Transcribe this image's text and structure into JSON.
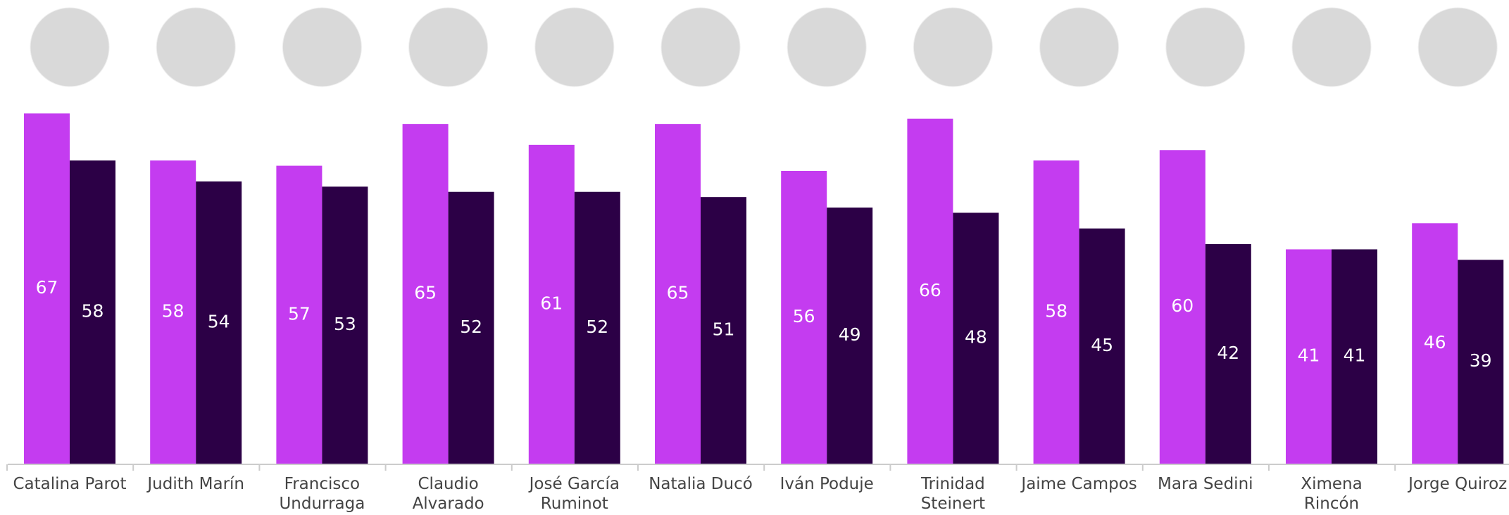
{
  "chart_data": {
    "type": "bar",
    "categories": [
      "Catalina Parot",
      "Judith Marín",
      "Francisco Undurraga",
      "Claudio Alvarado",
      "José García Ruminot",
      "Natalia Ducó",
      "Iván Poduje",
      "Trinidad Steinert",
      "Jaime Campos",
      "Mara Sedini",
      "Ximena Rincón",
      "Jorge Quiroz"
    ],
    "series": [
      {
        "color": "#c43cf0",
        "values": [
          67,
          58,
          57,
          65,
          61,
          65,
          56,
          66,
          58,
          60,
          41,
          46
        ]
      },
      {
        "color": "#2c0046",
        "values": [
          58,
          54,
          53,
          52,
          52,
          51,
          49,
          48,
          45,
          42,
          41,
          39
        ]
      }
    ],
    "ylim": [
      0,
      70
    ]
  }
}
